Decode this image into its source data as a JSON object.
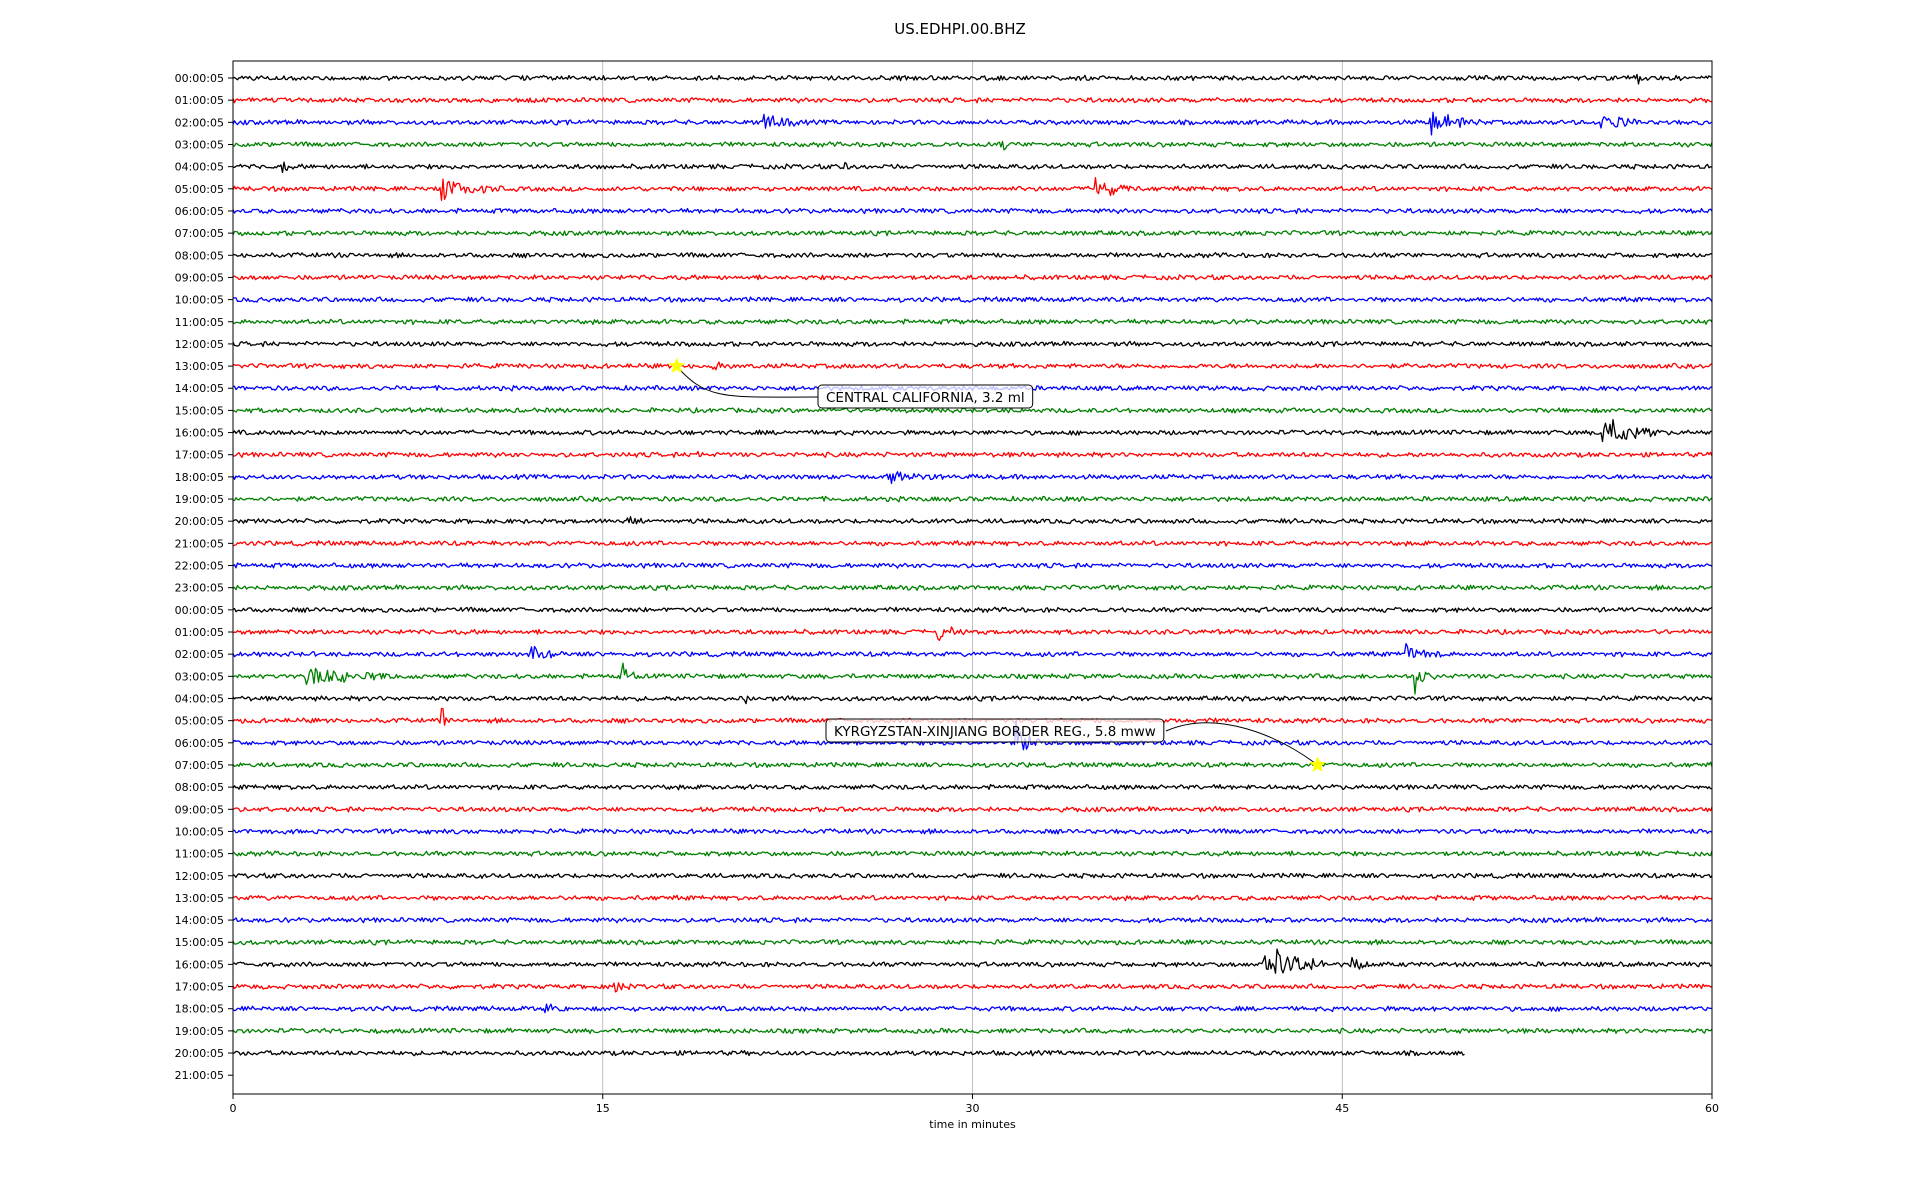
{
  "chart_data": {
    "type": "line",
    "title": "US.EDHPI.00.BHZ",
    "xlabel": "time in minutes",
    "ylabel": "",
    "xlim": [
      0,
      60
    ],
    "xticks": [
      "0",
      "15",
      "30",
      "45",
      "60"
    ],
    "xtick_values": [
      0,
      15,
      30,
      45,
      60
    ],
    "grid": "vertical lines at x ticks",
    "row_labels": [
      "00:00:05",
      "01:00:05",
      "02:00:05",
      "03:00:05",
      "04:00:05",
      "05:00:05",
      "06:00:05",
      "07:00:05",
      "08:00:05",
      "09:00:05",
      "10:00:05",
      "11:00:05",
      "12:00:05",
      "13:00:05",
      "14:00:05",
      "15:00:05",
      "16:00:05",
      "17:00:05",
      "18:00:05",
      "19:00:05",
      "20:00:05",
      "21:00:05",
      "22:00:05",
      "23:00:05",
      "00:00:05",
      "01:00:05",
      "02:00:05",
      "03:00:05",
      "04:00:05",
      "05:00:05",
      "06:00:05",
      "07:00:05",
      "08:00:05",
      "09:00:05",
      "10:00:05",
      "11:00:05",
      "12:00:05",
      "13:00:05",
      "14:00:05",
      "15:00:05",
      "16:00:05",
      "17:00:05",
      "18:00:05",
      "19:00:05",
      "20:00:05",
      "21:00:05"
    ],
    "trace_colors": [
      "#000000",
      "#ff0000",
      "#0000ff",
      "#008000"
    ],
    "trace_end_minutes": {
      "44": 50
    },
    "bursts": [
      {
        "row": 0,
        "t": 56.9,
        "amp": 0.6,
        "dur": 0.3
      },
      {
        "row": 2,
        "t": 21.5,
        "amp": 0.5,
        "dur": 1.6
      },
      {
        "row": 2,
        "t": 48.6,
        "amp": 0.7,
        "dur": 2.0
      },
      {
        "row": 2,
        "t": 55.5,
        "amp": 0.6,
        "dur": 1.6
      },
      {
        "row": 3,
        "t": 31.2,
        "amp": 0.5,
        "dur": 0.3
      },
      {
        "row": 4,
        "t": 2.0,
        "amp": 0.4,
        "dur": 0.2
      },
      {
        "row": 4,
        "t": 24.8,
        "amp": 0.4,
        "dur": 0.2
      },
      {
        "row": 5,
        "t": 8.5,
        "amp": 0.6,
        "dur": 2.4
      },
      {
        "row": 5,
        "t": 35.0,
        "amp": 0.7,
        "dur": 1.6
      },
      {
        "row": 13,
        "t": 19.5,
        "amp": 0.3,
        "dur": 0.6
      },
      {
        "row": 16,
        "t": 55.6,
        "amp": 1.1,
        "dur": 2.2
      },
      {
        "row": 17,
        "t": 18.8,
        "amp": 0.3,
        "dur": 0.5
      },
      {
        "row": 18,
        "t": 26.5,
        "amp": 0.4,
        "dur": 2.0
      },
      {
        "row": 20,
        "t": 16.0,
        "amp": 0.3,
        "dur": 1.0
      },
      {
        "row": 25,
        "t": 28.6,
        "amp": 0.5,
        "dur": 1.0
      },
      {
        "row": 26,
        "t": 12.0,
        "amp": 0.5,
        "dur": 1.5
      },
      {
        "row": 26,
        "t": 47.5,
        "amp": 0.6,
        "dur": 1.5
      },
      {
        "row": 27,
        "t": 2.8,
        "amp": 0.6,
        "dur": 4.0
      },
      {
        "row": 27,
        "t": 15.8,
        "amp": 1.4,
        "dur": 0.5
      },
      {
        "row": 27,
        "t": 48.0,
        "amp": 0.8,
        "dur": 0.8
      },
      {
        "row": 28,
        "t": 20.8,
        "amp": 0.4,
        "dur": 0.2
      },
      {
        "row": 29,
        "t": 8.5,
        "amp": 0.7,
        "dur": 0.4
      },
      {
        "row": 30,
        "t": 31.8,
        "amp": 1.5,
        "dur": 1.0
      },
      {
        "row": 40,
        "t": 41.8,
        "amp": 1.6,
        "dur": 2.5
      },
      {
        "row": 40,
        "t": 45.4,
        "amp": 0.6,
        "dur": 0.7
      },
      {
        "row": 41,
        "t": 15.5,
        "amp": 0.4,
        "dur": 0.6
      },
      {
        "row": 42,
        "t": 12.5,
        "amp": 0.4,
        "dur": 1.0
      }
    ],
    "events": [
      {
        "label": "CENTRAL CALIFORNIA, 3.2 ml",
        "row": 13,
        "minute": 18.0,
        "marker": "star",
        "marker_color": "#ffff00"
      },
      {
        "label": "KYRGYZSTAN-XINJIANG BORDER REG., 5.8 mww",
        "row": 31,
        "minute": 44.0,
        "marker": "star",
        "marker_color": "#ffff00"
      }
    ]
  }
}
